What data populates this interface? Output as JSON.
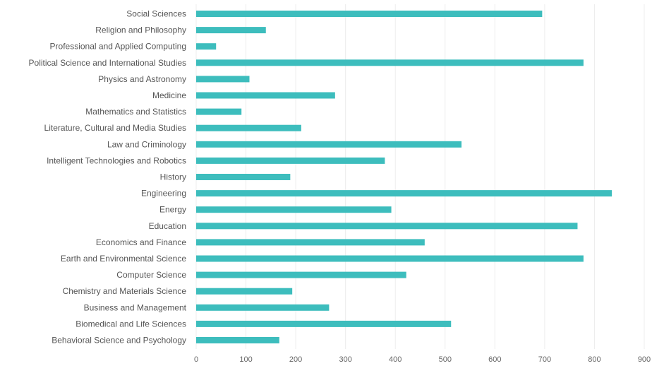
{
  "chart_data": {
    "type": "bar",
    "orientation": "horizontal",
    "title": "",
    "xlabel": "",
    "ylabel": "",
    "grid": true,
    "bar_color": "#3dbdbd",
    "categories": [
      "Social Sciences",
      "Religion and Philosophy",
      "Professional and Applied Computing",
      "Political Science and International Studies",
      "Physics and Astronomy",
      "Medicine",
      "Mathematics and Statistics",
      "Literature, Cultural and Media Studies",
      "Law and Criminology",
      "Intelligent Technologies and Robotics",
      "History",
      "Engineering",
      "Energy",
      "Education",
      "Economics and Finance",
      "Earth and Environmental Science",
      "Computer Science",
      "Chemistry and Materials Science",
      "Business and Management",
      "Biomedical and Life Sciences",
      "Behavioral Science and Psychology"
    ],
    "values": [
      695,
      140,
      40,
      778,
      107,
      279,
      91,
      211,
      533,
      379,
      189,
      835,
      392,
      766,
      459,
      778,
      422,
      193,
      267,
      512,
      167
    ],
    "xlim": [
      0,
      900
    ],
    "xticks": [
      0,
      100,
      200,
      300,
      400,
      500,
      600,
      700,
      800,
      900
    ]
  }
}
